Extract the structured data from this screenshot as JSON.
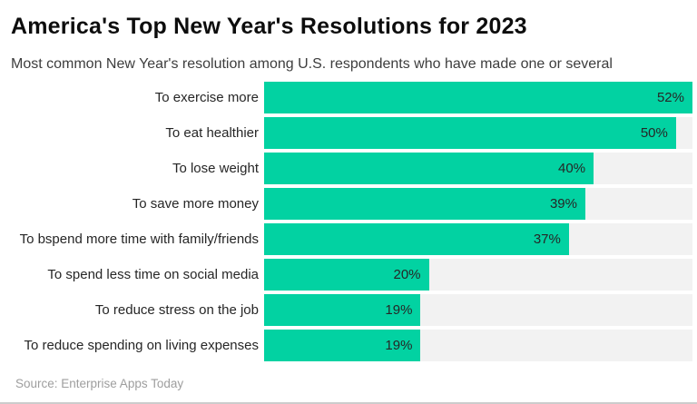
{
  "header": {
    "title": "America's Top New Year's Resolutions for 2023",
    "subtitle": "Most common New Year's resolution among U.S. respondents who have made one or several"
  },
  "footer": {
    "source": "Source: Enterprise Apps Today"
  },
  "colors": {
    "bar": "#02d2a2",
    "track": "#f2f2f2",
    "value_label": "#262626",
    "category_label": "#262626",
    "source_text": "#9e9e9e",
    "bottom_border": "#cccccc"
  },
  "chart_data": {
    "type": "bar",
    "orientation": "horizontal",
    "title": "America's Top New Year's Resolutions for 2023",
    "subtitle": "Most common New Year's resolution among U.S. respondents who have made one or several",
    "source": "Source: Enterprise Apps Today",
    "categories": [
      "To exercise more",
      "To eat healthier",
      "To lose weight",
      "To save more money",
      "To bspend more time with family/friends",
      "To spend less time on social media",
      "To reduce stress on the job",
      "To reduce spending on living expenses"
    ],
    "values": [
      52,
      50,
      40,
      39,
      37,
      20,
      19,
      19
    ],
    "value_suffix": "%",
    "xlim": [
      0,
      52
    ],
    "grid": false,
    "legend": false,
    "value_labels_inside_bar": true
  }
}
